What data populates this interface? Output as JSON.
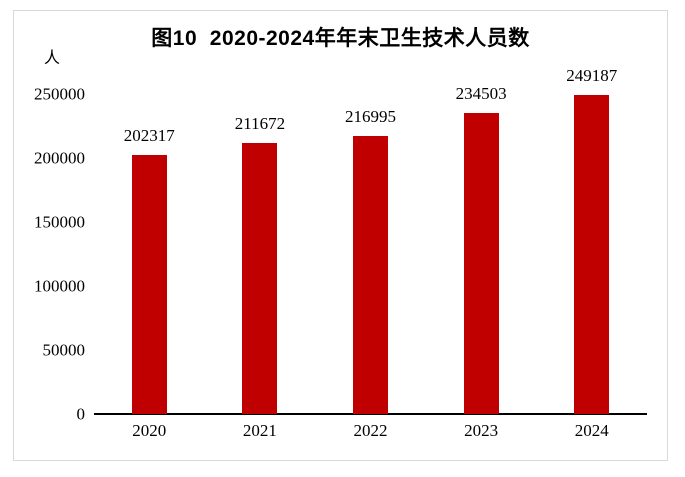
{
  "chart": {
    "title": "图10  2020-2024年年末卫生技术人员数",
    "unit_label": "人"
  },
  "colors": {
    "bar": "#c00000",
    "axis": "#000000",
    "frame_border": "#d9d9d9",
    "text": "#000000"
  },
  "chart_data": {
    "type": "bar",
    "title": "图10  2020-2024年年末卫生技术人员数",
    "categories": [
      "2020",
      "2021",
      "2022",
      "2023",
      "2024"
    ],
    "values": [
      202317,
      211672,
      216995,
      234503,
      249187
    ],
    "data_labels": [
      "202317",
      "211672",
      "216995",
      "234503",
      "249187"
    ],
    "xlabel": "",
    "ylabel": "人",
    "ylim": [
      0,
      250000
    ],
    "yticks": [
      0,
      50000,
      100000,
      150000,
      200000,
      250000
    ],
    "grid": false,
    "legend": "none",
    "bar_color": "#c00000"
  }
}
